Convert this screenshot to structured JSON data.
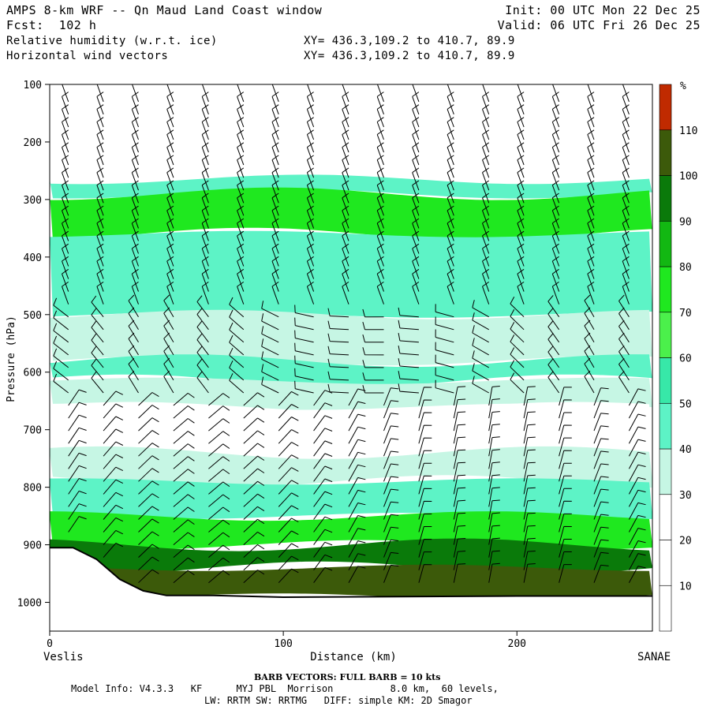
{
  "header": {
    "title": "AMPS 8-km WRF -- Qn Maud Land Coast window",
    "fcst": "Fcst:  102 h",
    "field1": "Relative humidity (w.r.t. ice)",
    "field2": "Horizontal wind vectors",
    "init": "Init: 00 UTC Mon 22 Dec 25",
    "valid": "Valid: 06 UTC Fri 26 Dec 25",
    "xy1": "XY= 436.3,109.2 to 410.7, 89.9",
    "xy2": "XY= 436.3,109.2 to 410.7, 89.9"
  },
  "footer": {
    "barb_note": "BARB VECTORS:  FULL BARB = 10 kts",
    "model_info": "Model Info: V4.3.3   KF      MYJ PBL  Morrison          8.0 km,  60 levels,",
    "model_info2": "LW: RRTM SW: RRTMG   DIFF: simple KM: 2D Smagor"
  },
  "chart_data": {
    "type": "cross-section",
    "title": "Relative humidity (w.r.t. ice) and horizontal wind vectors",
    "xlabel": "Distance (km)",
    "ylabel": "Pressure (hPa)",
    "x_start_label": "Veslis",
    "x_end_label": "SANAE",
    "xlim": [
      0,
      258
    ],
    "ylim": [
      1050,
      100
    ],
    "x_ticks": [
      0,
      100,
      200
    ],
    "y_ticks": [
      100,
      200,
      300,
      400,
      500,
      600,
      700,
      800,
      900,
      1000
    ],
    "colorbar": {
      "unit": "%",
      "levels": [
        10,
        20,
        30,
        40,
        50,
        60,
        70,
        80,
        90,
        100,
        110
      ],
      "colors": [
        "#ffffff",
        "#ffffff",
        "#ffffff",
        "#c6f6e4",
        "#5df3c6",
        "#37e8a8",
        "#4bf04b",
        "#1fe81f",
        "#12b812",
        "#0a7a0a",
        "#3c5a0a",
        "#c02a00"
      ]
    },
    "rh_profile_midsection": [
      {
        "pressure_range": [
          100,
          265
        ],
        "rh_class": "<30"
      },
      {
        "pressure_range": [
          265,
          290
        ],
        "rh_class": "40-50"
      },
      {
        "pressure_range": [
          290,
          360
        ],
        "rh_class": "70-80"
      },
      {
        "pressure_range": [
          360,
          500
        ],
        "rh_class": "40-50"
      },
      {
        "pressure_range": [
          500,
          580
        ],
        "rh_class": "30-40"
      },
      {
        "pressure_range": [
          580,
          615
        ],
        "rh_class": "40-50"
      },
      {
        "pressure_range": [
          615,
          660
        ],
        "rh_class": "30-40"
      },
      {
        "pressure_range": [
          660,
          740
        ],
        "rh_class": "<30"
      },
      {
        "pressure_range": [
          740,
          790
        ],
        "rh_class": "30-40"
      },
      {
        "pressure_range": [
          790,
          850
        ],
        "rh_class": "40-50"
      },
      {
        "pressure_range": [
          850,
          900
        ],
        "rh_class": "70-80"
      },
      {
        "pressure_range": [
          900,
          940
        ],
        "rh_class": "90-100"
      },
      {
        "pressure_range": [
          940,
          990
        ],
        "rh_class": "100-110"
      }
    ],
    "terrain_pressure": [
      [
        0,
        905
      ],
      [
        10,
        905
      ],
      [
        20,
        925
      ],
      [
        30,
        960
      ],
      [
        40,
        980
      ],
      [
        50,
        988
      ],
      [
        70,
        988
      ],
      [
        100,
        991
      ],
      [
        150,
        990
      ],
      [
        200,
        989
      ],
      [
        258,
        989
      ]
    ],
    "wind_barbs": "10 kt full barb; column of barbs every ~15 km"
  }
}
